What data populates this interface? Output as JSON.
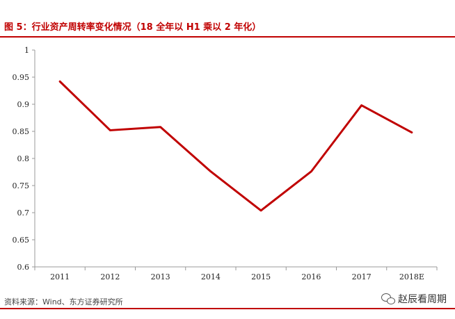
{
  "header": {
    "title": "图 5：行业资产周转率变化情况（18 全年以 H1 乘以 2 年化）"
  },
  "footer": {
    "source": "资料来源：Wind、东方证券研究所",
    "watermark": "赵辰看周期"
  },
  "colors": {
    "accent": "#c00000",
    "line": "#c00000"
  },
  "chart_data": {
    "type": "line",
    "categories": [
      "2011",
      "2012",
      "2013",
      "2014",
      "2015",
      "2016",
      "2017",
      "2018E"
    ],
    "series": [
      {
        "values": [
          0.942,
          0.852,
          0.858,
          0.776,
          0.704,
          0.776,
          0.898,
          0.848
        ]
      }
    ],
    "yticks": [
      "0.6",
      "0.65",
      "0.7",
      "0.75",
      "0.8",
      "0.85",
      "0.9",
      "0.95",
      "1"
    ],
    "ylim": [
      0.6,
      1.0
    ],
    "grid": false,
    "legend": "none"
  }
}
